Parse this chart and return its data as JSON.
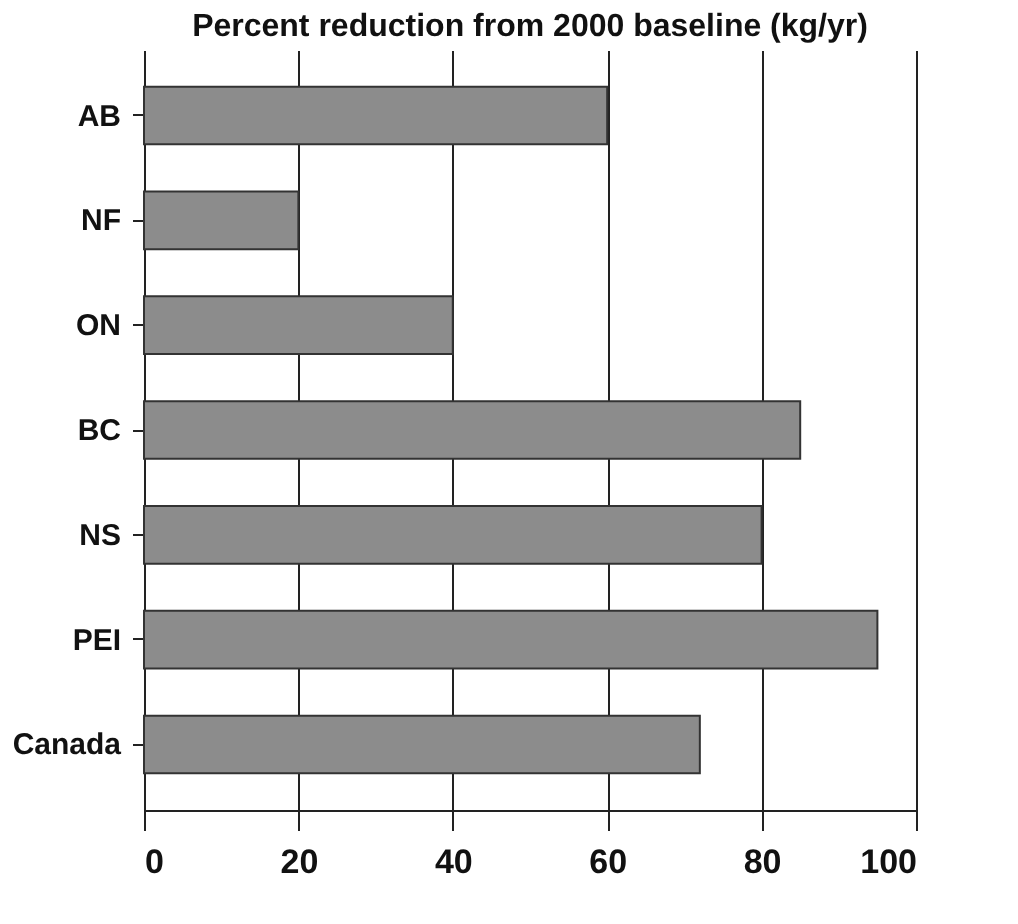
{
  "chart_data": {
    "type": "bar",
    "orientation": "horizontal",
    "title": "Percent reduction from 2000 baseline (kg/yr)",
    "categories": [
      "AB",
      "NF",
      "ON",
      "BC",
      "NS",
      "PEI",
      "Canada"
    ],
    "values": [
      60,
      20,
      40,
      85,
      80,
      95,
      72
    ],
    "color": "#8c8c8c",
    "xlim": [
      0,
      100
    ],
    "xticks": [
      0,
      20,
      40,
      60,
      80,
      100
    ],
    "grid": "x"
  }
}
